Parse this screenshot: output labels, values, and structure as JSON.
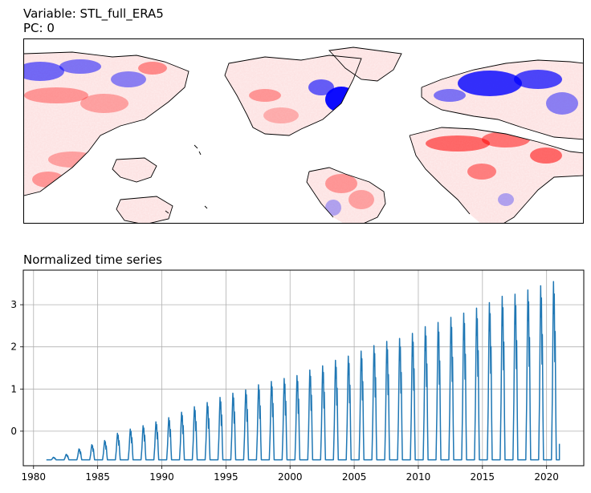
{
  "map_panel": {
    "title_line1": "Variable: STL_full_ERA5",
    "title_line2": "PC: 0",
    "colormap": "bwr",
    "colors": {
      "negative": "#0000ff",
      "neutral": "#ffffff",
      "positive": "#ff0000",
      "coastline": "#000000"
    }
  },
  "chart_data": {
    "type": "line",
    "title": "Normalized time series",
    "xlabel": "",
    "ylabel": "",
    "xlim": [
      1979.2,
      2022.9
    ],
    "ylim": [
      -0.82,
      3.82
    ],
    "x_ticks": [
      1980,
      1985,
      1990,
      1995,
      2000,
      2005,
      2010,
      2015,
      2020
    ],
    "y_ticks": [
      0,
      1,
      2,
      3
    ],
    "grid": true,
    "series_color": "#1f77b4",
    "series": [
      {
        "x_start": 1981.0,
        "x_end": 2021.0,
        "baseline": -0.68,
        "annual_peaks": [
          {
            "year": 1981,
            "value": -0.62
          },
          {
            "year": 1982,
            "value": -0.55
          },
          {
            "year": 1983,
            "value": -0.42
          },
          {
            "year": 1984,
            "value": -0.32
          },
          {
            "year": 1985,
            "value": -0.22
          },
          {
            "year": 1986,
            "value": -0.05
          },
          {
            "year": 1987,
            "value": 0.05
          },
          {
            "year": 1988,
            "value": 0.13
          },
          {
            "year": 1989,
            "value": 0.22
          },
          {
            "year": 1990,
            "value": 0.32
          },
          {
            "year": 1991,
            "value": 0.45
          },
          {
            "year": 1992,
            "value": 0.58
          },
          {
            "year": 1993,
            "value": 0.68
          },
          {
            "year": 1994,
            "value": 0.8
          },
          {
            "year": 1995,
            "value": 0.9
          },
          {
            "year": 1996,
            "value": 0.98
          },
          {
            "year": 1997,
            "value": 1.1
          },
          {
            "year": 1998,
            "value": 1.18
          },
          {
            "year": 1999,
            "value": 1.25
          },
          {
            "year": 2000,
            "value": 1.32
          },
          {
            "year": 2001,
            "value": 1.45
          },
          {
            "year": 2002,
            "value": 1.55
          },
          {
            "year": 2003,
            "value": 1.68
          },
          {
            "year": 2004,
            "value": 1.78
          },
          {
            "year": 2005,
            "value": 1.9
          },
          {
            "year": 2006,
            "value": 2.03
          },
          {
            "year": 2007,
            "value": 2.13
          },
          {
            "year": 2008,
            "value": 2.2
          },
          {
            "year": 2009,
            "value": 2.32
          },
          {
            "year": 2010,
            "value": 2.48
          },
          {
            "year": 2011,
            "value": 2.58
          },
          {
            "year": 2012,
            "value": 2.7
          },
          {
            "year": 2013,
            "value": 2.8
          },
          {
            "year": 2014,
            "value": 2.92
          },
          {
            "year": 2015,
            "value": 3.05
          },
          {
            "year": 2016,
            "value": 3.2
          },
          {
            "year": 2017,
            "value": 3.25
          },
          {
            "year": 2018,
            "value": 3.35
          },
          {
            "year": 2019,
            "value": 3.45
          },
          {
            "year": 2020,
            "value": 3.55
          }
        ],
        "end_value": -0.3
      }
    ]
  }
}
